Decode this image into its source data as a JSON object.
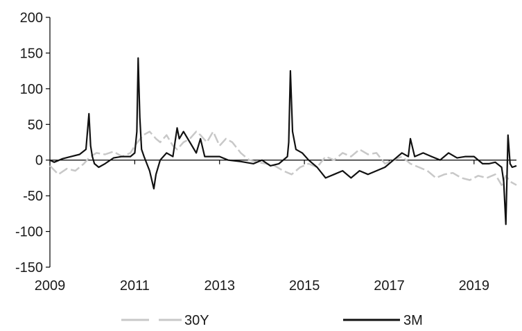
{
  "chart_data": {
    "type": "line",
    "title": "",
    "xlabel": "",
    "ylabel": "",
    "xlim": [
      2009,
      2020.0
    ],
    "ylim": [
      -150,
      200
    ],
    "y_ticks": [
      200,
      150,
      100,
      50,
      0,
      -50,
      -100,
      -150
    ],
    "x_ticks": [
      2009,
      2011,
      2013,
      2015,
      2017,
      2019
    ],
    "y_tick_labels": [
      "200",
      "150",
      "100",
      "50",
      "0",
      "-50",
      "-100",
      "-150"
    ],
    "x_tick_labels": [
      "2009",
      "2011",
      "2013",
      "2015",
      "2017",
      "2019"
    ],
    "grid": false,
    "legend_position": "bottom",
    "series": [
      {
        "name": "30Y",
        "color": "#c8c8c8",
        "style": "dashed",
        "x": [
          2009.0,
          2009.2,
          2009.4,
          2009.6,
          2009.8,
          2009.95,
          2010.1,
          2010.3,
          2010.5,
          2010.7,
          2010.9,
          2011.0,
          2011.2,
          2011.35,
          2011.5,
          2011.6,
          2011.75,
          2011.9,
          2012.0,
          2012.15,
          2012.3,
          2012.45,
          2012.55,
          2012.7,
          2012.85,
          2013.0,
          2013.15,
          2013.3,
          2013.5,
          2013.7,
          2013.9,
          2014.1,
          2014.3,
          2014.5,
          2014.7,
          2014.9,
          2015.1,
          2015.3,
          2015.5,
          2015.7,
          2015.9,
          2016.1,
          2016.3,
          2016.5,
          2016.7,
          2016.9,
          2017.1,
          2017.3,
          2017.5,
          2017.7,
          2017.9,
          2018.1,
          2018.3,
          2018.5,
          2018.7,
          2018.9,
          2019.1,
          2019.3,
          2019.5,
          2019.65,
          2019.75,
          2019.85,
          2020.0
        ],
        "y": [
          -8,
          -20,
          -12,
          -15,
          -5,
          5,
          10,
          8,
          12,
          5,
          10,
          20,
          35,
          40,
          30,
          25,
          35,
          20,
          15,
          25,
          30,
          40,
          35,
          25,
          40,
          20,
          30,
          25,
          10,
          0,
          -3,
          -5,
          -8,
          -15,
          -20,
          -10,
          -5,
          -10,
          5,
          0,
          10,
          5,
          15,
          8,
          10,
          -5,
          0,
          5,
          -5,
          -10,
          -15,
          -25,
          -20,
          -18,
          -25,
          -28,
          -22,
          -25,
          -20,
          -35,
          -22,
          -30,
          -35
        ]
      },
      {
        "name": "3M",
        "color": "#111111",
        "style": "solid",
        "x": [
          2009.0,
          2009.1,
          2009.3,
          2009.5,
          2009.7,
          2009.85,
          2009.92,
          2009.96,
          2010.0,
          2010.05,
          2010.15,
          2010.3,
          2010.5,
          2010.7,
          2010.9,
          2011.0,
          2011.05,
          2011.08,
          2011.12,
          2011.16,
          2011.22,
          2011.35,
          2011.45,
          2011.5,
          2011.6,
          2011.75,
          2011.9,
          2012.0,
          2012.05,
          2012.15,
          2012.3,
          2012.45,
          2012.55,
          2012.65,
          2012.8,
          2013.0,
          2013.2,
          2013.5,
          2013.8,
          2014.0,
          2014.2,
          2014.4,
          2014.6,
          2014.63,
          2014.67,
          2014.72,
          2014.8,
          2014.95,
          2015.1,
          2015.3,
          2015.5,
          2015.7,
          2015.9,
          2016.1,
          2016.3,
          2016.5,
          2016.7,
          2016.9,
          2017.1,
          2017.3,
          2017.45,
          2017.5,
          2017.6,
          2017.8,
          2018.0,
          2018.2,
          2018.4,
          2018.6,
          2018.8,
          2019.0,
          2019.2,
          2019.35,
          2019.5,
          2019.65,
          2019.7,
          2019.75,
          2019.8,
          2019.85,
          2019.9,
          2020.0
        ],
        "y": [
          0,
          -3,
          2,
          5,
          8,
          15,
          65,
          20,
          5,
          -5,
          -10,
          -5,
          3,
          5,
          5,
          10,
          40,
          143,
          60,
          15,
          5,
          -15,
          -40,
          -20,
          0,
          10,
          5,
          45,
          30,
          40,
          25,
          10,
          30,
          5,
          5,
          5,
          0,
          -2,
          -5,
          0,
          -8,
          -5,
          5,
          25,
          125,
          40,
          15,
          10,
          0,
          -10,
          -25,
          -20,
          -15,
          -25,
          -15,
          -20,
          -15,
          -10,
          0,
          10,
          5,
          30,
          5,
          10,
          5,
          0,
          10,
          3,
          5,
          5,
          -5,
          -5,
          -3,
          -10,
          -30,
          -90,
          35,
          -5,
          -10,
          -8
        ]
      }
    ]
  }
}
